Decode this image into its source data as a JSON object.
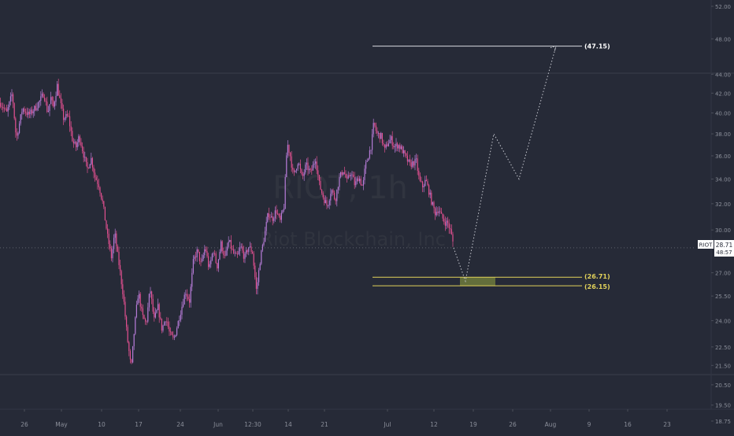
{
  "watermark": {
    "symbol": "RIOT, 1h",
    "name": "Riot Blockchain, Inc"
  },
  "colors": {
    "background": "#262a37",
    "candle_up": "#b57bd6",
    "candle_down": "#e0508f",
    "target_line": "#d8dae0",
    "support_line": "#e2d25a",
    "support_zone": "#6f7a3c",
    "projection": "#c8cad2",
    "axis_text": "#8a8e99",
    "price_label_bg": "#ffffff"
  },
  "price_axis": {
    "ticks": [
      "52.00",
      "48.00",
      "44.00",
      "42.00",
      "40.00",
      "38.00",
      "36.00",
      "34.00",
      "32.00",
      "30.00",
      "27.00",
      "25.50",
      "24.00",
      "22.50",
      "21.50",
      "20.50",
      "19.50",
      "18.75"
    ]
  },
  "time_axis": {
    "ticks": [
      "26",
      "May",
      "10",
      "17",
      "24",
      "Jun",
      "12:30",
      "14",
      "21",
      "Jul",
      "12",
      "19",
      "26",
      "Aug",
      "9",
      "16",
      "23"
    ]
  },
  "annotations": {
    "target_label": "(47.15)",
    "support_upper_label": "(26.71)",
    "support_lower_label": "(26.15)"
  },
  "current_price": {
    "symbol": "RIOT",
    "price": "28.71",
    "countdown": "48:57"
  },
  "chart_data": {
    "type": "candlestick",
    "title": "RIOT, 1h",
    "subtitle": "Riot Blockchain, Inc",
    "ylim": [
      18.75,
      52.0
    ],
    "y_scale": "log",
    "x_ticks": [
      "26",
      "May",
      "10",
      "17",
      "24",
      "Jun",
      "12:30",
      "14",
      "21",
      "Jul",
      "12",
      "19",
      "26",
      "Aug",
      "9",
      "16",
      "23"
    ],
    "price_path": [
      [
        0,
        41.0
      ],
      [
        8,
        40.0
      ],
      [
        15,
        42.0
      ],
      [
        20,
        37.5
      ],
      [
        28,
        40.5
      ],
      [
        36,
        39.8
      ],
      [
        44,
        40.5
      ],
      [
        50,
        41.2
      ],
      [
        55,
        42.0
      ],
      [
        60,
        40.0
      ],
      [
        64,
        41.5
      ],
      [
        67,
        40.5
      ],
      [
        72,
        42.8
      ],
      [
        76,
        41.0
      ],
      [
        80,
        39.5
      ],
      [
        86,
        39.7
      ],
      [
        92,
        37.2
      ],
      [
        96,
        36.8
      ],
      [
        100,
        37.8
      ],
      [
        106,
        36.0
      ],
      [
        110,
        34.8
      ],
      [
        115,
        35.8
      ],
      [
        120,
        34.2
      ],
      [
        125,
        33.5
      ],
      [
        130,
        32.0
      ],
      [
        136,
        29.5
      ],
      [
        141,
        28.0
      ],
      [
        145,
        29.8
      ],
      [
        148,
        28.5
      ],
      [
        152,
        27.0
      ],
      [
        156,
        25.5
      ],
      [
        161,
        23.0
      ],
      [
        166,
        21.3
      ],
      [
        170,
        23.5
      ],
      [
        175,
        25.8
      ],
      [
        180,
        24.3
      ],
      [
        185,
        23.8
      ],
      [
        190,
        26.0
      ],
      [
        195,
        24.0
      ],
      [
        200,
        24.8
      ],
      [
        205,
        23.5
      ],
      [
        210,
        24.2
      ],
      [
        215,
        23.2
      ],
      [
        220,
        22.9
      ],
      [
        225,
        23.8
      ],
      [
        230,
        24.8
      ],
      [
        235,
        25.8
      ],
      [
        240,
        25.2
      ],
      [
        245,
        27.8
      ],
      [
        250,
        28.5
      ],
      [
        255,
        27.5
      ],
      [
        260,
        28.8
      ],
      [
        265,
        27.2
      ],
      [
        270,
        28.6
      ],
      [
        275,
        27.4
      ],
      [
        280,
        29.0
      ],
      [
        285,
        28.0
      ],
      [
        290,
        29.2
      ],
      [
        295,
        28.4
      ],
      [
        300,
        28.0
      ],
      [
        305,
        28.8
      ],
      [
        310,
        28.0
      ],
      [
        315,
        28.8
      ],
      [
        320,
        28.4
      ],
      [
        325,
        25.8
      ],
      [
        330,
        28.0
      ],
      [
        335,
        29.5
      ],
      [
        340,
        31.3
      ],
      [
        345,
        30.8
      ],
      [
        350,
        31.5
      ],
      [
        355,
        30.6
      ],
      [
        360,
        31.8
      ],
      [
        364,
        37.2
      ],
      [
        368,
        36.0
      ],
      [
        372,
        34.2
      ],
      [
        378,
        35.6
      ],
      [
        383,
        34.0
      ],
      [
        388,
        35.2
      ],
      [
        394,
        34.5
      ],
      [
        400,
        35.8
      ],
      [
        405,
        33.5
      ],
      [
        410,
        32.5
      ],
      [
        415,
        31.8
      ],
      [
        420,
        33.2
      ],
      [
        425,
        32.3
      ],
      [
        430,
        34.0
      ],
      [
        435,
        34.8
      ],
      [
        440,
        33.8
      ],
      [
        445,
        34.6
      ],
      [
        450,
        33.5
      ],
      [
        455,
        34.2
      ],
      [
        460,
        33.3
      ],
      [
        463,
        35.0
      ],
      [
        467,
        36.0
      ],
      [
        471,
        37.0
      ],
      [
        474,
        39.0
      ],
      [
        478,
        38.0
      ],
      [
        483,
        37.8
      ],
      [
        488,
        36.5
      ],
      [
        492,
        37.2
      ],
      [
        496,
        37.5
      ],
      [
        500,
        36.8
      ],
      [
        505,
        37.0
      ],
      [
        510,
        36.5
      ],
      [
        515,
        35.8
      ],
      [
        520,
        35.2
      ],
      [
        524,
        35.4
      ],
      [
        528,
        35.5
      ],
      [
        532,
        33.8
      ],
      [
        536,
        33.4
      ],
      [
        540,
        33.9
      ],
      [
        544,
        33.0
      ],
      [
        548,
        32.0
      ],
      [
        552,
        31.3
      ],
      [
        556,
        31.6
      ],
      [
        560,
        31.0
      ],
      [
        564,
        30.6
      ],
      [
        568,
        30.5
      ],
      [
        572,
        29.8
      ],
      [
        576,
        28.71
      ]
    ],
    "annotations": [
      {
        "type": "horizontal_line",
        "value": 47.15,
        "label": "(47.15)"
      },
      {
        "type": "zone",
        "upper": 26.71,
        "lower": 26.15,
        "labels": [
          "(26.71)",
          "(26.15)"
        ]
      },
      {
        "type": "projection_path",
        "points": [
          [
            576,
            28.71
          ],
          [
            591,
            26.45
          ],
          [
            627,
            38.0
          ],
          [
            659,
            34.0
          ],
          [
            706,
            47.15
          ]
        ]
      }
    ],
    "last_price": 28.71,
    "grid": false
  }
}
